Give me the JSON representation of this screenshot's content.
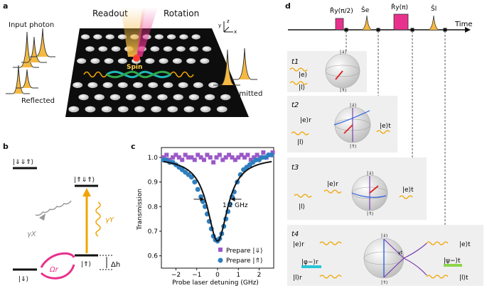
{
  "panel_a": {
    "letter": "a",
    "input_photon": "Input photon",
    "reflected": "Reflected",
    "readout": "Readout",
    "rotation": "Rotation",
    "spin": "Spin",
    "transmitted": "Transmitted",
    "axis_y": "y",
    "axis_z": "z",
    "axis_x": "x"
  },
  "panel_b": {
    "letter": "b",
    "state_top_left": "|⇓⇓⇑⟩",
    "state_top_right": "|⇑⇓⇑⟩",
    "state_mid": "|⇑⟩",
    "state_bottom": "|⇓⟩",
    "gamma_x": "γX",
    "gamma_y": "γY",
    "omega_r": "Ωr",
    "delta_h": "Δh"
  },
  "panel_c": {
    "letter": "c",
    "annotation": "1.2 GHz",
    "legend_1": "Prepare |⇓⟩",
    "legend_2": "Prepare |⇑⟩"
  },
  "chart_data": {
    "type": "scatter",
    "title": "",
    "xlabel": "Probe laser detuning (GHz)",
    "ylabel": "Transmission",
    "xlim": [
      -2.7,
      2.7
    ],
    "ylim": [
      0.55,
      1.04
    ],
    "xticks": [
      -2,
      -1,
      0,
      1,
      2
    ],
    "yticks": [
      0.6,
      0.7,
      0.8,
      0.9,
      1.0
    ],
    "xtick_labels": [
      "−2",
      "−1",
      "0",
      "1",
      "2"
    ],
    "ytick_labels": [
      "0.6",
      "0.7",
      "0.8",
      "0.9",
      "1.0"
    ],
    "series": [
      {
        "name": "Prepare |⇓⟩",
        "color": "#9b59c7",
        "marker": "square",
        "x": [
          -2.6,
          -2.45,
          -2.3,
          -2.15,
          -2.0,
          -1.85,
          -1.7,
          -1.55,
          -1.4,
          -1.25,
          -1.1,
          -0.95,
          -0.8,
          -0.65,
          -0.5,
          -0.35,
          -0.2,
          -0.05,
          0.1,
          0.25,
          0.4,
          0.55,
          0.7,
          0.85,
          1.0,
          1.15,
          1.3,
          1.45,
          1.6,
          1.75,
          1.9,
          2.05,
          2.2,
          2.35,
          2.5,
          2.65
        ],
        "y": [
          1.0,
          1.01,
          0.99,
          1.0,
          1.01,
          1.0,
          0.99,
          1.01,
          1.0,
          1.0,
          0.99,
          1.01,
          1.0,
          0.99,
          1.01,
          1.0,
          0.98,
          1.0,
          1.01,
          0.99,
          1.0,
          1.01,
          1.0,
          0.99,
          1.0,
          1.01,
          1.0,
          1.01,
          0.99,
          1.0,
          1.01,
          1.0,
          1.02,
          1.0,
          1.01,
          1.02
        ]
      },
      {
        "name": "Prepare |⇑⟩",
        "color": "#2e7fbf",
        "marker": "circle",
        "x": [
          -2.6,
          -2.45,
          -2.3,
          -2.15,
          -2.0,
          -1.85,
          -1.7,
          -1.55,
          -1.4,
          -1.25,
          -1.1,
          -0.95,
          -0.8,
          -0.7,
          -0.6,
          -0.5,
          -0.4,
          -0.3,
          -0.2,
          -0.1,
          0.0,
          0.1,
          0.2,
          0.3,
          0.4,
          0.5,
          0.6,
          0.7,
          0.8,
          0.95,
          1.1,
          1.25,
          1.4,
          1.55,
          1.7,
          1.85,
          2.0,
          2.15,
          2.3,
          2.45,
          2.6
        ],
        "y": [
          0.99,
          0.99,
          0.98,
          0.98,
          0.97,
          0.96,
          0.95,
          0.94,
          0.93,
          0.92,
          0.9,
          0.87,
          0.84,
          0.82,
          0.8,
          0.77,
          0.74,
          0.71,
          0.68,
          0.665,
          0.66,
          0.67,
          0.69,
          0.72,
          0.75,
          0.78,
          0.81,
          0.84,
          0.86,
          0.9,
          0.93,
          0.95,
          0.96,
          0.97,
          0.98,
          0.99,
          0.99,
          1.0,
          1.0,
          1.01,
          1.01
        ]
      }
    ],
    "fit_curve": {
      "name": "fit",
      "color": "#111111",
      "center": 0.0,
      "fwhm": 1.2,
      "depth": 0.34,
      "baseline": 1.0
    }
  },
  "panel_d": {
    "letter": "d",
    "time_label": "Time",
    "pulse_ry_half": "R̂y(π/2)",
    "pulse_se": "Ŝe",
    "pulse_ry_pi": "R̂y(π)",
    "pulse_sl": "Ŝl",
    "t1": "t1",
    "t2": "t2",
    "t3": "t3",
    "t4": "t4",
    "ket_e": "|e⟩",
    "ket_l": "|l⟩",
    "ket_er": "|e⟩r",
    "ket_et": "|e⟩t",
    "ket_lr": "|l⟩r",
    "ket_lt": "|l⟩t",
    "phi_minus": "|φ−⟩r",
    "psi_minus": "|ψ−⟩t",
    "sphere_up": "|⇑⟩",
    "sphere_down": "|⇓⟩",
    "sphere_yt": "yt"
  }
}
